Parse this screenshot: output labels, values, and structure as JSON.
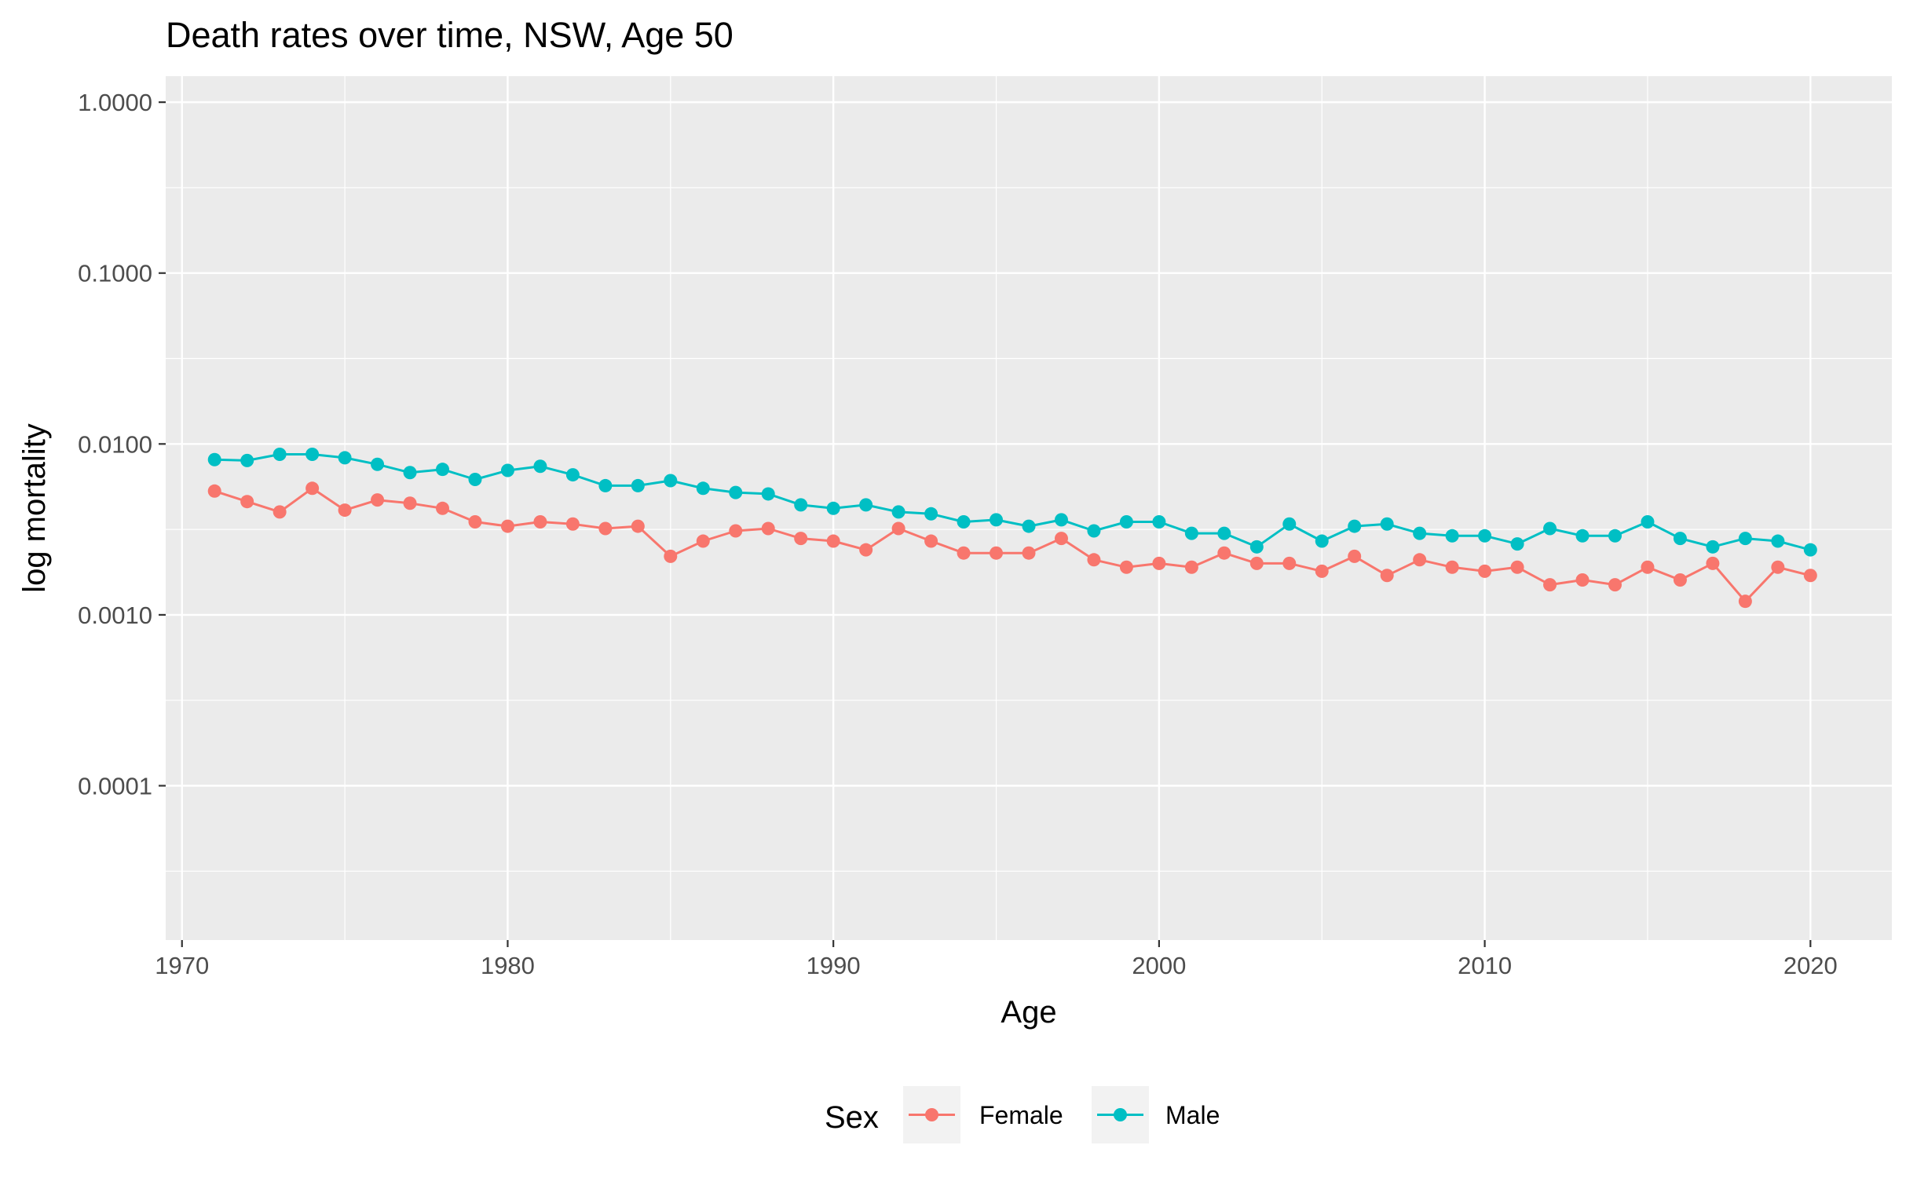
{
  "chart_data": {
    "type": "line",
    "title": "Death rates over time, NSW, Age 50",
    "xlabel": "Age",
    "ylabel": "log mortality",
    "y_scale": "log10",
    "xlim": [
      1969.5,
      2022.5
    ],
    "ylim": [
      1.25e-05,
      1.42
    ],
    "x_ticks": [
      1970,
      1980,
      1990,
      2000,
      2010,
      2020
    ],
    "x_tick_labels": [
      "1970",
      "1980",
      "1990",
      "2000",
      "2010",
      "2020"
    ],
    "y_ticks": [
      0.0001,
      0.001,
      0.01,
      0.1,
      1
    ],
    "y_tick_labels": [
      "0.0001",
      "0.0010",
      "0.0100",
      "0.1000",
      "1.0000"
    ],
    "grid": true,
    "legend": {
      "title": "Sex",
      "position": "bottom"
    },
    "x": [
      1971,
      1972,
      1973,
      1974,
      1975,
      1976,
      1977,
      1978,
      1979,
      1980,
      1981,
      1982,
      1983,
      1984,
      1985,
      1986,
      1987,
      1988,
      1989,
      1990,
      1991,
      1992,
      1993,
      1994,
      1995,
      1996,
      1997,
      1998,
      1999,
      2000,
      2001,
      2002,
      2003,
      2004,
      2005,
      2006,
      2007,
      2008,
      2009,
      2010,
      2011,
      2012,
      2013,
      2014,
      2015,
      2016,
      2017,
      2018,
      2019,
      2020
    ],
    "series": [
      {
        "name": "Female",
        "color": "#F8766D",
        "values": [
          0.0053,
          0.0046,
          0.004,
          0.0055,
          0.0041,
          0.0047,
          0.0045,
          0.0042,
          0.0035,
          0.0033,
          0.0035,
          0.0034,
          0.0032,
          0.0033,
          0.0022,
          0.0027,
          0.0031,
          0.0032,
          0.0028,
          0.0027,
          0.0024,
          0.0032,
          0.0027,
          0.0023,
          0.0023,
          0.0023,
          0.0028,
          0.0021,
          0.0019,
          0.002,
          0.0019,
          0.0023,
          0.002,
          0.002,
          0.0018,
          0.0022,
          0.0017,
          0.0021,
          0.0019,
          0.0018,
          0.0019,
          0.0015,
          0.0016,
          0.0015,
          0.0019,
          0.0016,
          0.002,
          0.0012,
          0.0019,
          0.0017
        ]
      },
      {
        "name": "Male",
        "color": "#00BFC4",
        "values": [
          0.0081,
          0.008,
          0.0087,
          0.0087,
          0.0083,
          0.0076,
          0.0068,
          0.0071,
          0.0062,
          0.007,
          0.0074,
          0.0066,
          0.0057,
          0.0057,
          0.0061,
          0.0055,
          0.0052,
          0.0051,
          0.0044,
          0.0042,
          0.0044,
          0.004,
          0.0039,
          0.0035,
          0.0036,
          0.0033,
          0.0036,
          0.0031,
          0.0035,
          0.0035,
          0.003,
          0.003,
          0.0025,
          0.0034,
          0.0027,
          0.0033,
          0.0034,
          0.003,
          0.0029,
          0.0029,
          0.0026,
          0.0032,
          0.0029,
          0.0029,
          0.0035,
          0.0028,
          0.0025,
          0.0028,
          0.0027,
          0.0024
        ]
      }
    ]
  }
}
